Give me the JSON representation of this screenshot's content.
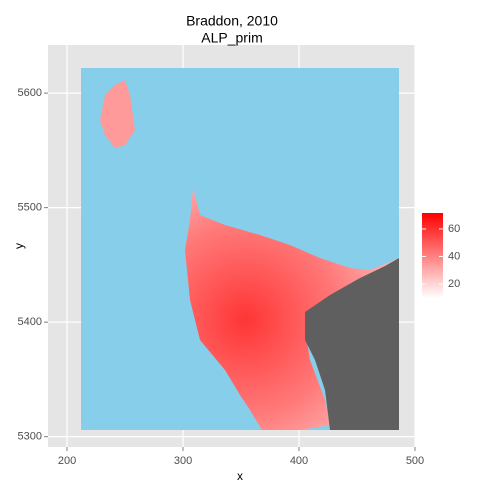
{
  "chart_data": {
    "type": "raster",
    "title": "Braddon, 2010",
    "subtitle": "ALP_prim",
    "x_label": "x",
    "y_label": "y",
    "xlim": [
      183.6,
      500
    ],
    "ylim": [
      5291,
      5642
    ],
    "xticks": [
      200,
      300,
      400,
      500
    ],
    "yticks": [
      5300,
      5400,
      5500,
      5600
    ],
    "grid": true,
    "colorbar": {
      "lim": [
        9.8,
        71.6
      ],
      "ticks": [
        20,
        40,
        60
      ],
      "colors": [
        "#ffffff",
        "#ff0000"
      ]
    }
  }
}
